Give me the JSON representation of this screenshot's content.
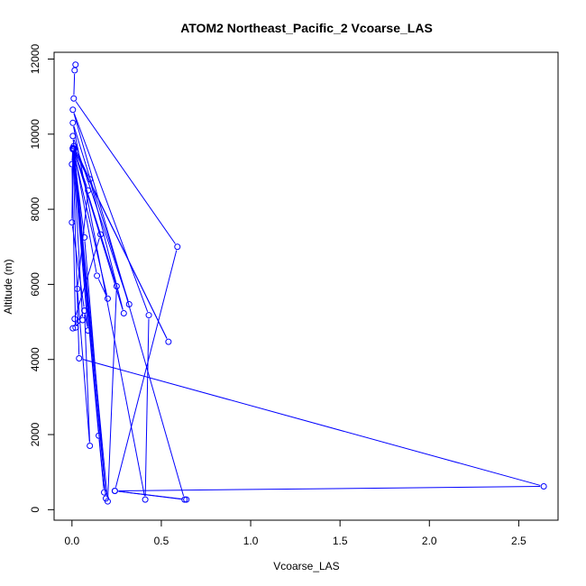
{
  "chart_data": {
    "type": "line",
    "title": "ATOM2 Northeast_Pacific_2 Vcoarse_LAS",
    "xlabel": "Vcoarse_LAS",
    "ylabel": "Altitude (m)",
    "xlim": [
      -0.1,
      2.72
    ],
    "ylim": [
      -280,
      12180
    ],
    "x_ticks": [
      0.0,
      0.5,
      1.0,
      1.5,
      2.0,
      2.5
    ],
    "x_tick_labels": [
      "0.0",
      "0.5",
      "1.0",
      "1.5",
      "2.0",
      "2.5"
    ],
    "y_ticks": [
      0,
      2000,
      4000,
      6000,
      8000,
      10000,
      12000
    ],
    "y_tick_labels": [
      "0",
      "2000",
      "4000",
      "6000",
      "8000",
      "10000",
      "12000"
    ],
    "grid": false,
    "color": "#0000ff",
    "marker": "open-circle",
    "series": [
      {
        "x": [
          0.02,
          0.015,
          0.01,
          0.59,
          0.24,
          0.63,
          0.005,
          0.43,
          0.41,
          0.005,
          0.32,
          0.005,
          0.2,
          0.25,
          0.01,
          0.54,
          0.01,
          0.16,
          0.015,
          0.02,
          0.0,
          0.005,
          0.07,
          0.19,
          0.01,
          0.1,
          0.29,
          0.01,
          0.09,
          0.03,
          0.1,
          0.07,
          0.0,
          0.005,
          0.15,
          0.18,
          0.01,
          0.14,
          0.2,
          0.005,
          0.06,
          0.005,
          0.07,
          0.09,
          0.005,
          0.04,
          2.64,
          0.24,
          0.64
        ],
        "y": [
          11850,
          11700,
          10950,
          7000,
          500,
          270,
          10650,
          5180,
          270,
          10300,
          5470,
          9950,
          220,
          5950,
          9620,
          4470,
          9600,
          7330,
          5080,
          4850,
          9200,
          9630,
          7250,
          300,
          9680,
          8800,
          5230,
          9600,
          8500,
          5880,
          1700,
          5300,
          7650,
          9620,
          1970,
          460,
          9600,
          6230,
          5620,
          9620,
          5050,
          4830,
          5300,
          4770,
          9600,
          4030,
          620,
          500,
          270
        ]
      }
    ]
  }
}
